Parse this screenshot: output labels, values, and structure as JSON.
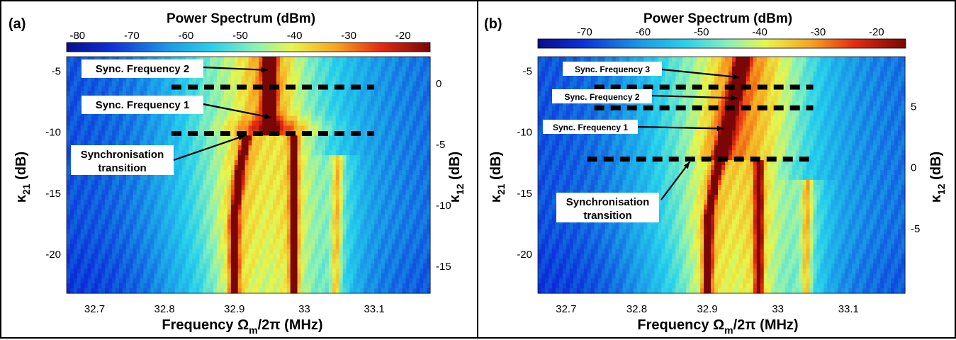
{
  "colormap": {
    "stops": [
      [
        0.0,
        "#0a0e8c"
      ],
      [
        0.12,
        "#0a2fd8"
      ],
      [
        0.28,
        "#1a9be8"
      ],
      [
        0.4,
        "#27d0ec"
      ],
      [
        0.52,
        "#8af1b8"
      ],
      [
        0.62,
        "#e9f54a"
      ],
      [
        0.74,
        "#f7a51e"
      ],
      [
        0.86,
        "#e82b10"
      ],
      [
        1.0,
        "#7a0606"
      ]
    ]
  },
  "panels": [
    {
      "id": "a",
      "label": "(a)",
      "colorbar_title": "Power Spectrum (dBm)",
      "colorbar_ticks": [
        "-80",
        "-70",
        "-60",
        "-50",
        "-40",
        "-30",
        "-20"
      ],
      "x_axis_label_main": "Frequency ",
      "x_axis_label_symbol": "Ω",
      "x_axis_label_sub": "m",
      "x_axis_label_rest": "/2π (MHz)",
      "x_ticks": [
        "32.7",
        "32.8",
        "32.9",
        "33",
        "33.1"
      ],
      "left_axis_symbol": "κ",
      "left_axis_sub": "21",
      "left_axis_unit": " (dB)",
      "left_ticks": [
        "-5",
        "-10",
        "-15",
        "-20"
      ],
      "right_axis_symbol": "κ",
      "right_axis_sub": "12",
      "right_axis_unit": " (dB)",
      "right_ticks": [
        "0",
        "-5",
        "-10",
        "-15"
      ],
      "annotations": [
        {
          "text": "Sync. Frequency 2"
        },
        {
          "text": "Sync. Frequency 1"
        },
        {
          "text": "Synchronisation",
          "text2": "transition"
        }
      ]
    },
    {
      "id": "b",
      "label": "(b)",
      "colorbar_title": "Power Spectrum (dBm)",
      "colorbar_ticks": [
        "-70",
        "-60",
        "-50",
        "-40",
        "-30",
        "-20"
      ],
      "x_axis_label_main": "Frequency ",
      "x_axis_label_symbol": "Ω",
      "x_axis_label_sub": "m",
      "x_axis_label_rest": "/2π (MHz)",
      "x_ticks": [
        "32.7",
        "32.8",
        "32.9",
        "33",
        "33.1"
      ],
      "left_axis_symbol": "κ",
      "left_axis_sub": "21",
      "left_axis_unit": " (dB)",
      "left_ticks": [
        "-5",
        "-10",
        "-15",
        "-20"
      ],
      "right_axis_symbol": "κ",
      "right_axis_sub": "12",
      "right_axis_unit": " (dB)",
      "right_ticks": [
        "5",
        "0",
        "-5"
      ],
      "annotations": [
        {
          "text": "Sync. Frequency 3"
        },
        {
          "text": "Sync. Frequency 2"
        },
        {
          "text": "Sync. Frequency 1"
        },
        {
          "text": "Synchronisation",
          "text2": "transition"
        }
      ]
    }
  ],
  "chart_data": [
    {
      "type": "heatmap",
      "panel": "a",
      "title": "Power Spectrum (dBm)",
      "xlabel": "Frequency Ωm/2π (MHz)",
      "ylabel": "κ21 (dB)",
      "y2label": "κ12 (dB)",
      "xlim": [
        32.66,
        33.18
      ],
      "ylim": [
        -23.2,
        -3.8
      ],
      "y2lim": [
        -17.2,
        2.2
      ],
      "colorbar_range": [
        -82,
        -15
      ],
      "features": [
        {
          "name": "mode-1-ridge",
          "points": [
            [
              32.9,
              -23.2
            ],
            [
              32.9,
              -17
            ],
            [
              32.908,
              -13
            ],
            [
              32.918,
              -10.2
            ]
          ]
        },
        {
          "name": "mode-2-ridge",
          "points": [
            [
              32.985,
              -23.2
            ],
            [
              32.985,
              -10.2
            ]
          ]
        },
        {
          "name": "mode-3-ridge",
          "points": [
            [
              33.045,
              -23.2
            ],
            [
              33.048,
              -12
            ]
          ]
        },
        {
          "name": "sync-ridge",
          "points": [
            [
              32.95,
              -10.2
            ],
            [
              32.95,
              -3.8
            ]
          ]
        },
        {
          "name": "transition-line",
          "points": [
            [
              32.81,
              -10.1
            ],
            [
              33.1,
              -10.1
            ]
          ]
        },
        {
          "name": "upper-line",
          "points": [
            [
              32.81,
              -6.3
            ],
            [
              33.1,
              -6.3
            ]
          ]
        }
      ]
    },
    {
      "type": "heatmap",
      "panel": "b",
      "title": "Power Spectrum (dBm)",
      "xlabel": "Frequency Ωm/2π (MHz)",
      "ylabel": "κ21 (dB)",
      "y2label": "κ12 (dB)",
      "xlim": [
        32.66,
        33.18
      ],
      "ylim": [
        -23.2,
        -3.8
      ],
      "y2lim": [
        -10.3,
        9.1
      ],
      "colorbar_range": [
        -78,
        -15
      ],
      "features": [
        {
          "name": "mode-1-ridge",
          "points": [
            [
              32.9,
              -23.2
            ],
            [
              32.902,
              -17
            ],
            [
              32.91,
              -14
            ],
            [
              32.918,
              -12.2
            ]
          ]
        },
        {
          "name": "mode-2-ridge",
          "points": [
            [
              32.973,
              -23.2
            ],
            [
              32.973,
              -12.2
            ]
          ]
        },
        {
          "name": "mode-3-ridge",
          "points": [
            [
              33.04,
              -23.2
            ],
            [
              33.042,
              -14
            ]
          ]
        },
        {
          "name": "sync-ridge",
          "points": [
            [
              32.918,
              -12.2
            ],
            [
              32.935,
              -8
            ],
            [
              32.945,
              -5.5
            ],
            [
              32.95,
              -3.8
            ]
          ]
        },
        {
          "name": "transition-line",
          "points": [
            [
              32.73,
              -12.2
            ],
            [
              33.05,
              -12.2
            ]
          ]
        },
        {
          "name": "line-2",
          "points": [
            [
              32.74,
              -8.0
            ],
            [
              33.05,
              -8.0
            ]
          ]
        },
        {
          "name": "line-3",
          "points": [
            [
              32.74,
              -6.3
            ],
            [
              33.05,
              -6.3
            ]
          ]
        }
      ]
    }
  ]
}
